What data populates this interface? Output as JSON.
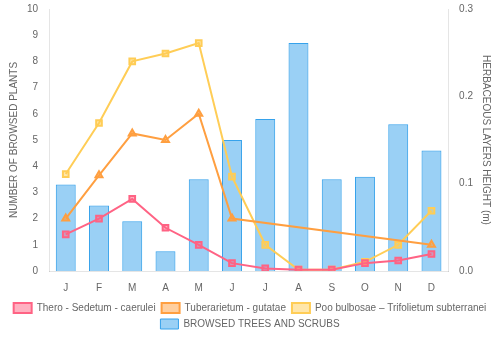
{
  "chart_data": {
    "type": "bar",
    "categories": [
      "J",
      "F",
      "M",
      "A",
      "M",
      "J",
      "J",
      "A",
      "S",
      "O",
      "N",
      "D"
    ],
    "series": [
      {
        "name": "BROWSED TREES AND SCRUBS",
        "type": "bar",
        "values": [
          3.3,
          2.5,
          1.9,
          0.75,
          3.5,
          5.0,
          5.8,
          8.7,
          3.5,
          3.6,
          5.6,
          4.6
        ]
      },
      {
        "name": "Thero - Sedetum - caerulei",
        "type": "line",
        "marker": "square",
        "values": [
          1.4,
          2.0,
          2.75,
          1.65,
          1.0,
          0.3,
          0.1,
          0.05,
          0.05,
          0.3,
          0.4,
          0.65
        ]
      },
      {
        "name": "Tuberarietum - gutatae",
        "type": "line",
        "marker": "triangle",
        "values": [
          2.0,
          3.65,
          5.25,
          5.0,
          6.0,
          2.0,
          null,
          null,
          null,
          null,
          null,
          1.0
        ]
      },
      {
        "name": "Poo bulbosae – Trifolietum subterranei",
        "type": "line",
        "marker": "square",
        "values": [
          3.7,
          5.65,
          8.0,
          8.3,
          8.7,
          3.6,
          1.0,
          0.05,
          0.05,
          0.35,
          1.0,
          2.3
        ]
      }
    ],
    "ylabel": "NUMBER OF BROWSED PLANTS",
    "ylim": [
      0,
      10
    ],
    "yticks": [
      0,
      1,
      2,
      3,
      4,
      5,
      6,
      7,
      8,
      9,
      10
    ],
    "y2label": "HERBACEOUS LAYERS HEIGHT (m)",
    "y2lim": [
      0,
      0.3
    ],
    "y2ticks": [
      {
        "value": 0,
        "label": "0.0"
      },
      0.1,
      0.2,
      0.3
    ],
    "grid": false,
    "legend": "bottom"
  }
}
